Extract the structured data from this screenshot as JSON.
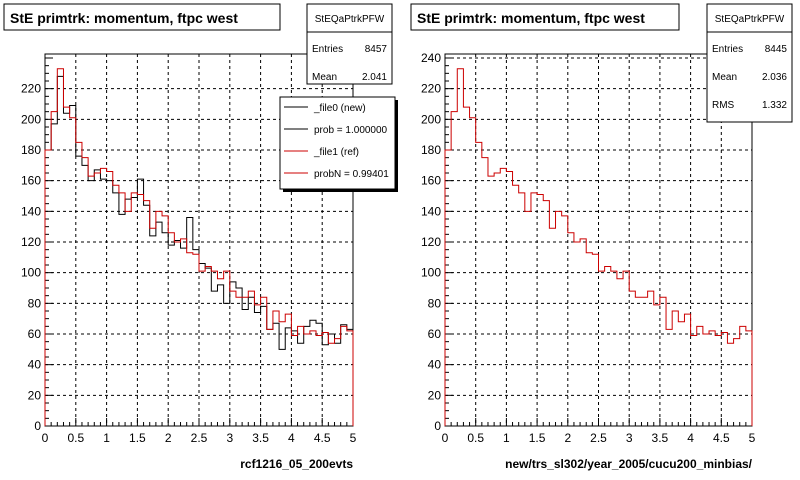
{
  "footer_text": "",
  "colors": {
    "file0": "#000000",
    "file1": "#cc0000",
    "grid": "#000000"
  },
  "chart_data": [
    {
      "type": "bar",
      "title": "StE primtrk: momentum, ftpc west",
      "xlabel": "rcf1216_05_200evts",
      "ylabel": "",
      "xlim": [
        0,
        5
      ],
      "ylim": [
        0,
        240
      ],
      "x_ticks": [
        "0",
        "0.5",
        "1",
        "1.5",
        "2",
        "2.5",
        "3",
        "3.5",
        "4",
        "4.5",
        "5"
      ],
      "y_ticks": [
        "0",
        "20",
        "40",
        "60",
        "80",
        "100",
        "120",
        "140",
        "160",
        "180",
        "200",
        "220"
      ],
      "grid": true,
      "bin_width": 0.1,
      "stats": {
        "name": "StEQaPtrkPFW",
        "rows": [
          {
            "label": "Entries",
            "value": "8457"
          },
          {
            "label": "Mean",
            "value": "2.041"
          }
        ]
      },
      "legend": [
        {
          "label": "_file0 (new)",
          "color": "#000000"
        },
        {
          "label": "prob = 1.000000",
          "color": "#000000"
        },
        {
          "label": "_file1 (ref)",
          "color": "#cc0000"
        },
        {
          "label": "probN = 0.99401",
          "color": "#cc0000"
        }
      ],
      "series": [
        {
          "name": "_file0 (new)",
          "color": "#000000",
          "values": [
            180,
            197,
            228,
            204,
            209,
            176,
            170,
            160,
            167,
            161,
            160,
            152,
            138,
            148,
            149,
            161,
            144,
            124,
            133,
            126,
            118,
            121,
            116,
            136,
            115,
            106,
            103,
            88,
            92,
            80,
            94,
            90,
            76,
            84,
            74,
            78,
            63,
            67,
            50,
            64,
            62,
            54,
            65,
            69,
            67,
            53,
            60,
            54,
            66,
            63
          ]
        },
        {
          "name": "_file1 (ref)",
          "color": "#cc0000",
          "values": [
            180,
            205,
            233,
            208,
            201,
            185,
            175,
            163,
            165,
            168,
            166,
            157,
            152,
            140,
            152,
            151,
            147,
            129,
            140,
            137,
            126,
            120,
            122,
            113,
            112,
            101,
            104,
            101,
            96,
            101,
            88,
            84,
            84,
            88,
            79,
            84,
            63,
            75,
            68,
            73,
            59,
            65,
            60,
            62,
            59,
            61,
            54,
            57,
            65,
            62
          ]
        }
      ]
    },
    {
      "type": "bar",
      "title": "StE primtrk: momentum, ftpc west",
      "xlabel": "new/trs_sl302/year_2005/cucu200_minbias/",
      "ylabel": "",
      "xlim": [
        0,
        5
      ],
      "ylim": [
        0,
        240
      ],
      "x_ticks": [
        "0",
        "0.5",
        "1",
        "1.5",
        "2",
        "2.5",
        "3",
        "3.5",
        "4",
        "4.5",
        "5"
      ],
      "y_ticks": [
        "0",
        "20",
        "40",
        "60",
        "80",
        "100",
        "120",
        "140",
        "160",
        "180",
        "200",
        "220",
        "240"
      ],
      "grid": true,
      "bin_width": 0.1,
      "stats": {
        "name": "StEQaPtrkPFW",
        "rows": [
          {
            "label": "Entries",
            "value": "8445"
          },
          {
            "label": "Mean",
            "value": "2.036"
          },
          {
            "label": "RMS",
            "value": "1.332"
          }
        ]
      },
      "series": [
        {
          "name": "",
          "color": "#cc0000",
          "values": [
            180,
            205,
            233,
            208,
            201,
            185,
            175,
            163,
            165,
            168,
            166,
            157,
            152,
            140,
            152,
            151,
            147,
            129,
            140,
            137,
            126,
            120,
            122,
            113,
            112,
            101,
            104,
            101,
            96,
            101,
            88,
            84,
            84,
            88,
            79,
            84,
            63,
            75,
            68,
            73,
            59,
            65,
            60,
            62,
            59,
            61,
            54,
            57,
            65,
            62
          ]
        }
      ]
    }
  ]
}
